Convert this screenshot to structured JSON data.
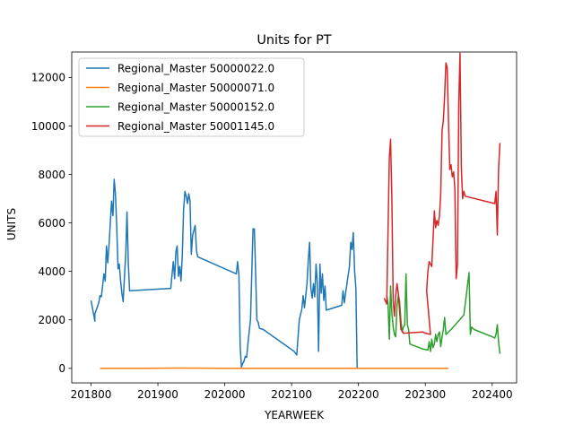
{
  "chart_data": {
    "type": "line",
    "title": "Units for PT",
    "xlabel": "YEARWEEK",
    "ylabel": "UNITS",
    "xlim": [
      201737,
      202419
    ],
    "ylim": [
      -600,
      13050
    ],
    "xticks": [
      201800,
      201900,
      202000,
      202100,
      202200,
      202300,
      202400
    ],
    "yticks": [
      0,
      2000,
      4000,
      6000,
      8000,
      10000,
      12000
    ],
    "grid": false,
    "legend_position": "upper left",
    "series": [
      {
        "name": "Regional_Master 50000022.0",
        "color": "#1f77b4",
        "points": [
          [
            201752,
            2800
          ],
          [
            201755,
            1950
          ],
          [
            201803,
            2250
          ],
          [
            201806,
            2700
          ],
          [
            201807,
            3000
          ],
          [
            201808,
            2950
          ],
          [
            201809,
            3400
          ],
          [
            201810,
            3900
          ],
          [
            201811,
            3600
          ],
          [
            201812,
            5050
          ],
          [
            201813,
            4350
          ],
          [
            201814,
            5100
          ],
          [
            201815,
            6000
          ],
          [
            201816,
            6900
          ],
          [
            201817,
            6300
          ],
          [
            201818,
            7800
          ],
          [
            201819,
            7200
          ],
          [
            201820,
            5800
          ],
          [
            201821,
            4100
          ],
          [
            201822,
            4300
          ],
          [
            201823,
            3600
          ],
          [
            201824,
            3100
          ],
          [
            201825,
            2750
          ],
          [
            201826,
            3800
          ],
          [
            201827,
            4700
          ],
          [
            201828,
            6450
          ],
          [
            201829,
            4300
          ],
          [
            201830,
            3200
          ],
          [
            201910,
            3300
          ],
          [
            201912,
            4400
          ],
          [
            201913,
            3700
          ],
          [
            201914,
            4800
          ],
          [
            201915,
            5050
          ],
          [
            201916,
            3800
          ],
          [
            201917,
            4200
          ],
          [
            201918,
            3600
          ],
          [
            201919,
            4700
          ],
          [
            201920,
            6550
          ],
          [
            201921,
            7300
          ],
          [
            201922,
            7100
          ],
          [
            201923,
            6800
          ],
          [
            201924,
            7200
          ],
          [
            201925,
            6900
          ],
          [
            201926,
            4700
          ],
          [
            201927,
            5500
          ],
          [
            201928,
            5700
          ],
          [
            201929,
            5900
          ],
          [
            201930,
            4850
          ],
          [
            201931,
            4600
          ],
          [
            202009,
            3900
          ],
          [
            202010,
            4400
          ],
          [
            202011,
            3850
          ],
          [
            202012,
            900
          ],
          [
            202013,
            50
          ],
          [
            202014,
            200
          ],
          [
            202015,
            300
          ],
          [
            202016,
            500
          ],
          [
            202017,
            450
          ],
          [
            202018,
            1000
          ],
          [
            202019,
            1500
          ],
          [
            202020,
            2000
          ],
          [
            202021,
            3900
          ],
          [
            202022,
            5750
          ],
          [
            202023,
            5750
          ],
          [
            202024,
            3950
          ],
          [
            202025,
            2000
          ],
          [
            202026,
            1900
          ],
          [
            202027,
            1650
          ],
          [
            202030,
            1600
          ],
          [
            202102,
            700
          ],
          [
            202104,
            550
          ],
          [
            202106,
            2000
          ],
          [
            202108,
            2450
          ],
          [
            202109,
            3000
          ],
          [
            202110,
            2500
          ],
          [
            202112,
            3500
          ],
          [
            202113,
            4500
          ],
          [
            202114,
            5200
          ],
          [
            202115,
            3300
          ],
          [
            202116,
            2900
          ],
          [
            202117,
            3500
          ],
          [
            202118,
            2950
          ],
          [
            202119,
            4300
          ],
          [
            202120,
            3500
          ],
          [
            202121,
            700
          ],
          [
            202122,
            4300
          ],
          [
            202123,
            3100
          ],
          [
            202124,
            3900
          ],
          [
            202125,
            2800
          ],
          [
            202126,
            3400
          ],
          [
            202127,
            2400
          ],
          [
            202139,
            2600
          ],
          [
            202140,
            3200
          ],
          [
            202141,
            2700
          ],
          [
            202142,
            3100
          ],
          [
            202145,
            4200
          ],
          [
            202146,
            5200
          ],
          [
            202147,
            4900
          ],
          [
            202148,
            5600
          ],
          [
            202149,
            4000
          ],
          [
            202150,
            3300
          ],
          [
            202151,
            0
          ]
        ]
      },
      {
        "name": "Regional_Master 50000071.0",
        "color": "#ff7f0e",
        "points": [
          [
            201807,
            0
          ],
          [
            201820,
            0
          ],
          [
            201840,
            0
          ],
          [
            201910,
            10
          ],
          [
            201930,
            10
          ],
          [
            201950,
            0
          ],
          [
            202010,
            0
          ],
          [
            202030,
            0
          ],
          [
            202050,
            0
          ],
          [
            202110,
            0
          ],
          [
            202130,
            0
          ],
          [
            202150,
            0
          ],
          [
            202210,
            0
          ],
          [
            202230,
            0
          ],
          [
            202250,
            0
          ],
          [
            202310,
            0
          ],
          [
            202318,
            0
          ]
        ]
      },
      {
        "name": "Regional_Master 50000152.0",
        "color": "#2ca02c",
        "points": [
          [
            202222,
            3000
          ],
          [
            202223,
            2700
          ],
          [
            202224,
            1200
          ],
          [
            202225,
            3400
          ],
          [
            202226,
            2300
          ],
          [
            202227,
            1700
          ],
          [
            202228,
            1400
          ],
          [
            202229,
            1300
          ],
          [
            202230,
            2600
          ],
          [
            202231,
            3000
          ],
          [
            202232,
            2800
          ],
          [
            202233,
            2000
          ],
          [
            202234,
            1500
          ],
          [
            202235,
            1700
          ],
          [
            202236,
            1800
          ],
          [
            202237,
            3900
          ],
          [
            202238,
            1800
          ],
          [
            202239,
            1600
          ],
          [
            202240,
            1000
          ],
          [
            202250,
            800
          ],
          [
            202302,
            750
          ],
          [
            202303,
            1100
          ],
          [
            202304,
            700
          ],
          [
            202305,
            1200
          ],
          [
            202306,
            850
          ],
          [
            202307,
            1000
          ],
          [
            202308,
            1400
          ],
          [
            202309,
            1100
          ],
          [
            202310,
            1400
          ],
          [
            202311,
            1500
          ],
          [
            202312,
            900
          ],
          [
            202313,
            1300
          ],
          [
            202314,
            1600
          ],
          [
            202315,
            2100
          ],
          [
            202316,
            1400
          ],
          [
            202320,
            1600
          ],
          [
            202330,
            2200
          ],
          [
            202334,
            3950
          ],
          [
            202335,
            1400
          ],
          [
            202336,
            1700
          ],
          [
            202338,
            1600
          ],
          [
            202352,
            1300
          ],
          [
            202354,
            1250
          ],
          [
            202403,
            1400
          ],
          [
            202404,
            1800
          ],
          [
            202405,
            1100
          ],
          [
            202406,
            600
          ]
        ]
      },
      {
        "name": "Regional_Master 50001145.0",
        "color": "#d62728",
        "points": [
          [
            202220,
            2900
          ],
          [
            202222,
            2650
          ],
          [
            202224,
            8700
          ],
          [
            202225,
            9450
          ],
          [
            202226,
            7050
          ],
          [
            202227,
            2800
          ],
          [
            202228,
            2150
          ],
          [
            202229,
            3000
          ],
          [
            202230,
            3500
          ],
          [
            202231,
            3100
          ],
          [
            202232,
            2400
          ],
          [
            202233,
            1600
          ],
          [
            202234,
            1550
          ],
          [
            202235,
            1450
          ],
          [
            202250,
            1500
          ],
          [
            202252,
            1450
          ],
          [
            202256,
            1400
          ],
          [
            202301,
            3200
          ],
          [
            202302,
            4000
          ],
          [
            202303,
            4400
          ],
          [
            202304,
            4300
          ],
          [
            202305,
            4200
          ],
          [
            202306,
            5300
          ],
          [
            202307,
            6500
          ],
          [
            202308,
            5800
          ],
          [
            202309,
            6100
          ],
          [
            202310,
            5900
          ],
          [
            202311,
            6300
          ],
          [
            202312,
            7200
          ],
          [
            202313,
            9800
          ],
          [
            202314,
            10200
          ],
          [
            202315,
            11200
          ],
          [
            202316,
            12600
          ],
          [
            202317,
            12400
          ],
          [
            202318,
            10300
          ],
          [
            202319,
            8200
          ],
          [
            202320,
            8400
          ],
          [
            202321,
            7900
          ],
          [
            202322,
            8100
          ],
          [
            202323,
            7400
          ],
          [
            202324,
            3700
          ],
          [
            202325,
            4300
          ],
          [
            202326,
            10900
          ],
          [
            202327,
            13000
          ],
          [
            202328,
            8300
          ],
          [
            202329,
            7000
          ],
          [
            202330,
            7300
          ],
          [
            202331,
            7100
          ],
          [
            202402,
            6800
          ],
          [
            202403,
            7300
          ],
          [
            202404,
            5500
          ],
          [
            202405,
            8200
          ],
          [
            202406,
            9300
          ]
        ]
      }
    ]
  }
}
